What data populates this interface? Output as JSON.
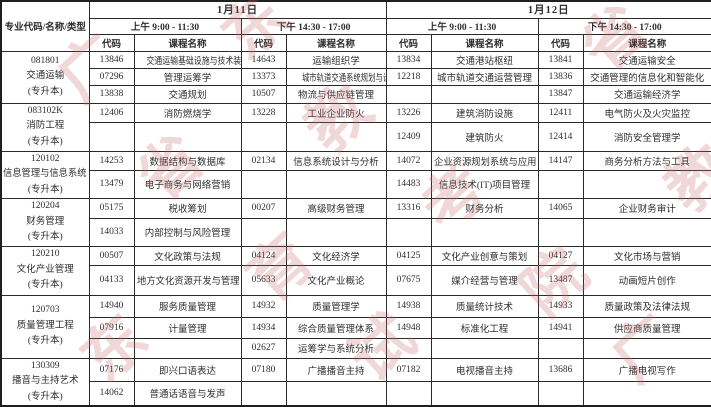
{
  "watermark": {
    "text": "广东省教育考试院",
    "color": "#c96a6a"
  },
  "header": {
    "major_label": "专业代码/名称/类型",
    "code_label": "代码",
    "course_label": "课程名称",
    "days": [
      {
        "date": "1月11日",
        "sessions": [
          "上午 9:00 - 11:30",
          "下午 14:30 - 17:00"
        ]
      },
      {
        "date": "1月12日",
        "sessions": [
          "上午 9:00 - 11:30",
          "下午 14:30 - 17:00"
        ]
      }
    ]
  },
  "groups": [
    {
      "code": "081801",
      "name": "交通运输",
      "type": "(专升本)",
      "rows": [
        [
          "13846",
          "交通运输基础设施与技术装备",
          "14643",
          "运输组织学",
          "13834",
          "交通港站枢纽",
          "13841",
          "交通运输安全"
        ],
        [
          "07296",
          "管理运筹学",
          "13373",
          "城市轨道交通系统规划与设计",
          "12218",
          "城市轨道交通运营管理",
          "13836",
          "交通管理的信息化和智能化"
        ],
        [
          "13838",
          "交通规划",
          "10507",
          "物流与供应链管理",
          "",
          "",
          "13847",
          "交通运输经济学"
        ]
      ]
    },
    {
      "code": "083102K",
      "name": "消防工程",
      "type": "(专升本)",
      "rows": [
        [
          "12406",
          "消防燃烧学",
          "13228",
          "工业企业防火",
          "13226",
          "建筑消防设施",
          "12411",
          "电气防火及火灾监控"
        ],
        [
          "",
          "",
          "",
          "",
          "12409",
          "建筑防火",
          "12414",
          "消防安全管理学"
        ]
      ]
    },
    {
      "code": "120102",
      "name": "信息管理与信息系统",
      "type": "(专升本)",
      "rows": [
        [
          "14253",
          "数据结构与数据库",
          "02134",
          "信息系统设计与分析",
          "14072",
          "企业资源规划系统与应用",
          "14147",
          "商务分析方法与工具"
        ],
        [
          "13479",
          "电子商务与网络营销",
          "",
          "",
          "14483",
          "信息技术(IT)项目管理",
          "",
          ""
        ]
      ]
    },
    {
      "code": "120204",
      "name": "财务管理",
      "type": "(专升本)",
      "rows": [
        [
          "05175",
          "税收筹划",
          "00207",
          "高级财务管理",
          "13316",
          "财务分析",
          "14065",
          "企业财务审计"
        ],
        [
          "14033",
          "内部控制与风险管理",
          "",
          "",
          "",
          "",
          "",
          ""
        ]
      ]
    },
    {
      "code": "120210",
      "name": "文化产业管理",
      "type": "(专升本)",
      "rows": [
        [
          "00507",
          "文化政策与法规",
          "04124",
          "文化经济学",
          "04125",
          "文化产业创意与策划",
          "04127",
          "文化市场与营销"
        ],
        [
          "04133",
          "地方文化资源开发与管理",
          "05633",
          "文化产业概论",
          "07675",
          "媒介经营与管理",
          "13487",
          "动画短片创作"
        ]
      ]
    },
    {
      "code": "120703",
      "name": "质量管理工程",
      "type": "(专升本)",
      "rows": [
        [
          "14940",
          "服务质量管理",
          "14932",
          "质量管理学",
          "14938",
          "质量统计技术",
          "14933",
          "质量政策及法律法规"
        ],
        [
          "07916",
          "计量管理",
          "14934",
          "综合质量管理体系",
          "14948",
          "标准化工程",
          "14941",
          "供应商质量管理"
        ],
        [
          "",
          "",
          "02627",
          "运筹学与系统分析",
          "",
          "",
          "",
          ""
        ]
      ]
    },
    {
      "code": "130309",
      "name": "播音与主持艺术",
      "type": "(专升本)",
      "rows": [
        [
          "07176",
          "即兴口语表达",
          "07180",
          "广播播音主持",
          "07182",
          "电视播音主持",
          "13686",
          "广播电视写作"
        ],
        [
          "14062",
          "普通话语音与发声",
          "",
          "",
          "",
          "",
          "",
          ""
        ]
      ]
    }
  ]
}
